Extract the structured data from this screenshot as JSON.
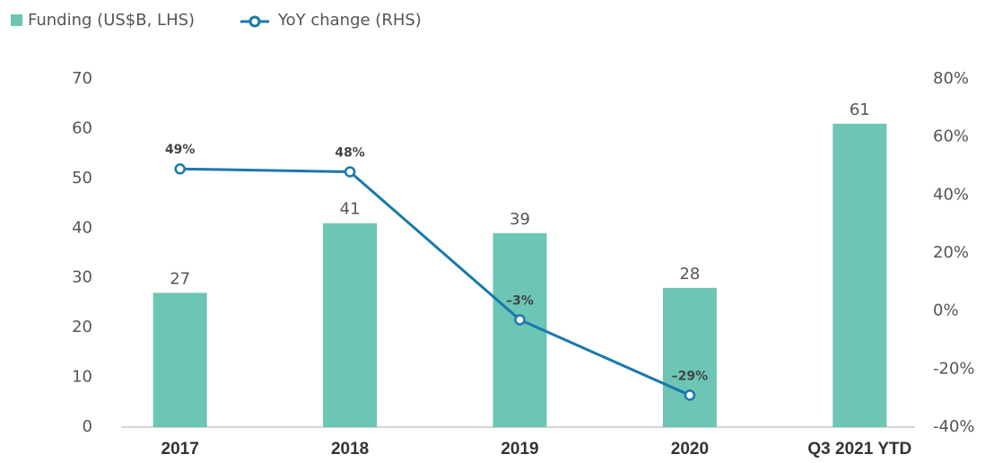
{
  "chart_data": {
    "type": "bar",
    "categories": [
      "2017",
      "2018",
      "2019",
      "2020",
      "Q3 2021 YTD"
    ],
    "series": [
      {
        "name": "Funding (US$B, LHS)",
        "color": "#6cc5b5",
        "values": [
          27,
          41,
          39,
          28,
          61
        ]
      },
      {
        "name": "YoY change (RHS)",
        "type": "line",
        "axis": "y2",
        "color": "#1a78ad",
        "values": [
          49,
          48,
          -3,
          -29,
          null
        ],
        "value_labels": [
          "49%",
          "48%",
          "–3%",
          "–29%",
          null
        ]
      }
    ],
    "ylim": [
      0,
      70
    ],
    "yticks": [
      0,
      10,
      20,
      30,
      40,
      50,
      60,
      70
    ],
    "y2lim": [
      -40,
      80
    ],
    "y2ticks": [
      {
        "value": -40,
        "label": "-40%"
      },
      {
        "value": -20,
        "label": "-20%"
      },
      {
        "value": 0,
        "label": "0%"
      },
      {
        "value": 20,
        "label": "20%"
      },
      {
        "value": 40,
        "label": "40%"
      },
      {
        "value": 60,
        "label": "60%"
      },
      {
        "value": 80,
        "label": "80%"
      }
    ],
    "legend": "top-left",
    "grid": false
  }
}
